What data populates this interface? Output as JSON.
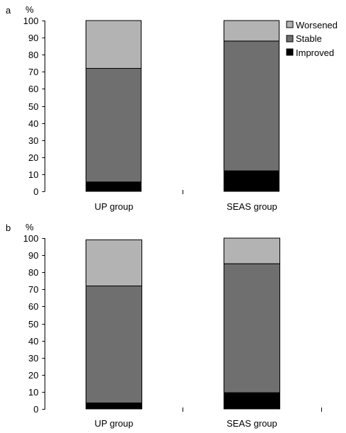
{
  "chart_data": [
    {
      "type": "bar",
      "stacked": true,
      "panel_label": "a",
      "ylabel": "%",
      "categories": [
        "UP group",
        "SEAS group"
      ],
      "series": [
        {
          "name": "Improved",
          "values": [
            5.5,
            12
          ],
          "color": "#000000"
        },
        {
          "name": "Stable",
          "values": [
            66.5,
            76
          ],
          "color": "#6f6f6f"
        },
        {
          "name": "Worsened",
          "values": [
            28,
            12
          ],
          "color": "#b3b3b3"
        }
      ],
      "ylim": [
        0,
        100
      ],
      "yticks": [
        0,
        10,
        20,
        30,
        40,
        50,
        60,
        70,
        80,
        90,
        100
      ],
      "legend": {
        "placement": "top-right",
        "entries": [
          "Worsened",
          "Stable",
          "Improved"
        ]
      },
      "grid": false
    },
    {
      "type": "bar",
      "stacked": true,
      "panel_label": "b",
      "ylabel": "%",
      "categories": [
        "UP group",
        "SEAS group"
      ],
      "series": [
        {
          "name": "Improved",
          "values": [
            3.5,
            9.5
          ],
          "color": "#000000"
        },
        {
          "name": "Stable",
          "values": [
            68.5,
            75.5
          ],
          "color": "#6f6f6f"
        },
        {
          "name": "Worsened",
          "values": [
            27,
            15
          ],
          "color": "#b3b3b3"
        }
      ],
      "ylim": [
        0,
        100
      ],
      "yticks": [
        0,
        10,
        20,
        30,
        40,
        50,
        60,
        70,
        80,
        90,
        100
      ],
      "grid": false
    }
  ]
}
